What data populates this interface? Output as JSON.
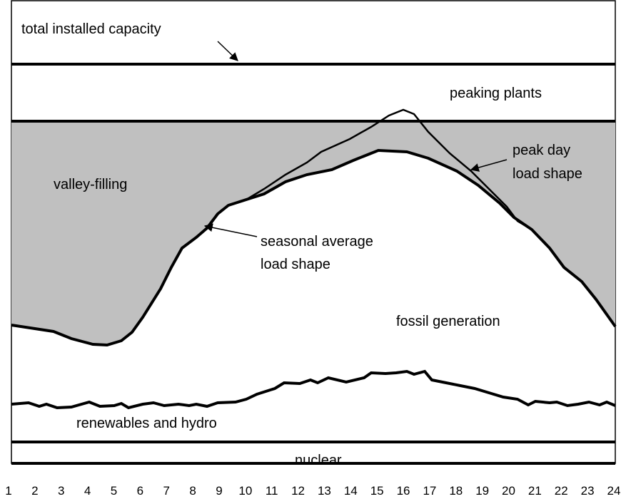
{
  "labels": {
    "total_capacity": "total installed capacity",
    "peaking": "peaking plants",
    "valley": "valley-filling",
    "peak_day": [
      "peak day",
      "load shape"
    ],
    "seasonal": [
      "seasonal average",
      "load shape"
    ],
    "fossil": "fossil generation",
    "renewables": "renewables and hydro",
    "nuclear": "nuclear"
  },
  "hours": [
    "1",
    "2",
    "3",
    "4",
    "5",
    "6",
    "7",
    "8",
    "9",
    "10",
    "11",
    "12",
    "13",
    "14",
    "15",
    "16",
    "17",
    "18",
    "19",
    "20",
    "21",
    "22",
    "23",
    "24"
  ]
}
